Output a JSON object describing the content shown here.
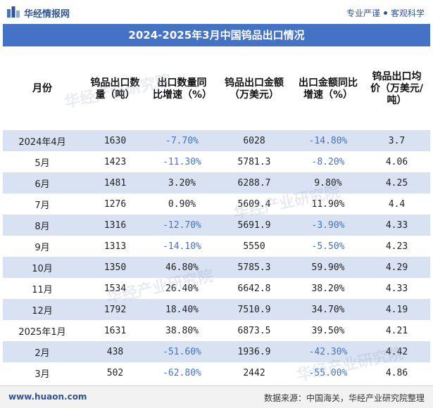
{
  "header": {
    "logo_text": "华经情报网",
    "slogan_left": "专业严谨",
    "slogan_right": "客观科学"
  },
  "title": "2024-2025年3月中国钨品出口情况",
  "table": {
    "columns": [
      "月份",
      "钨品出口数量（吨）",
      "出口数量同比增速（%）",
      "钨品出口金额（万美元）",
      "出口金额同比增速（%）",
      "钨品出口均价（万美元/吨）"
    ],
    "rows": [
      {
        "month": "2024年4月",
        "qty": "1630",
        "qty_yoy": "-7.70%",
        "amount": "6028",
        "amount_yoy": "-14.80%",
        "price": "3.7"
      },
      {
        "month": "5月",
        "qty": "1423",
        "qty_yoy": "-11.30%",
        "amount": "5781.3",
        "amount_yoy": "-8.20%",
        "price": "4.06"
      },
      {
        "month": "6月",
        "qty": "1481",
        "qty_yoy": "3.20%",
        "amount": "6288.7",
        "amount_yoy": "9.80%",
        "price": "4.25"
      },
      {
        "month": "7月",
        "qty": "1276",
        "qty_yoy": "0.90%",
        "amount": "5609.4",
        "amount_yoy": "11.90%",
        "price": "4.4"
      },
      {
        "month": "8月",
        "qty": "1316",
        "qty_yoy": "-12.70%",
        "amount": "5691.9",
        "amount_yoy": "-3.90%",
        "price": "4.33"
      },
      {
        "month": "9月",
        "qty": "1313",
        "qty_yoy": "-14.10%",
        "amount": "5550",
        "amount_yoy": "-5.50%",
        "price": "4.23"
      },
      {
        "month": "10月",
        "qty": "1350",
        "qty_yoy": "46.80%",
        "amount": "5785.3",
        "amount_yoy": "59.90%",
        "price": "4.29"
      },
      {
        "month": "11月",
        "qty": "1534",
        "qty_yoy": "26.40%",
        "amount": "6642.8",
        "amount_yoy": "38.20%",
        "price": "4.33"
      },
      {
        "month": "12月",
        "qty": "1792",
        "qty_yoy": "18.40%",
        "amount": "7510.9",
        "amount_yoy": "34.70%",
        "price": "4.19"
      },
      {
        "month": "2025年1月",
        "qty": "1631",
        "qty_yoy": "38.80%",
        "amount": "6873.5",
        "amount_yoy": "39.50%",
        "price": "4.21"
      },
      {
        "month": "2月",
        "qty": "438",
        "qty_yoy": "-51.60%",
        "amount": "1936.9",
        "amount_yoy": "-42.30%",
        "price": "4.42"
      },
      {
        "month": "3月",
        "qty": "502",
        "qty_yoy": "-62.80%",
        "amount": "2442",
        "amount_yoy": "-55.00%",
        "price": "4.86"
      }
    ]
  },
  "footer": {
    "website": "www.huaon.com",
    "source": "数据来源：中国海关，华经产业研究院整理"
  },
  "watermark_text": "华经产业研究院",
  "colors": {
    "brand_blue": "#4472c4",
    "stripe": "#d9e2f3",
    "negative": "#4472c4"
  }
}
